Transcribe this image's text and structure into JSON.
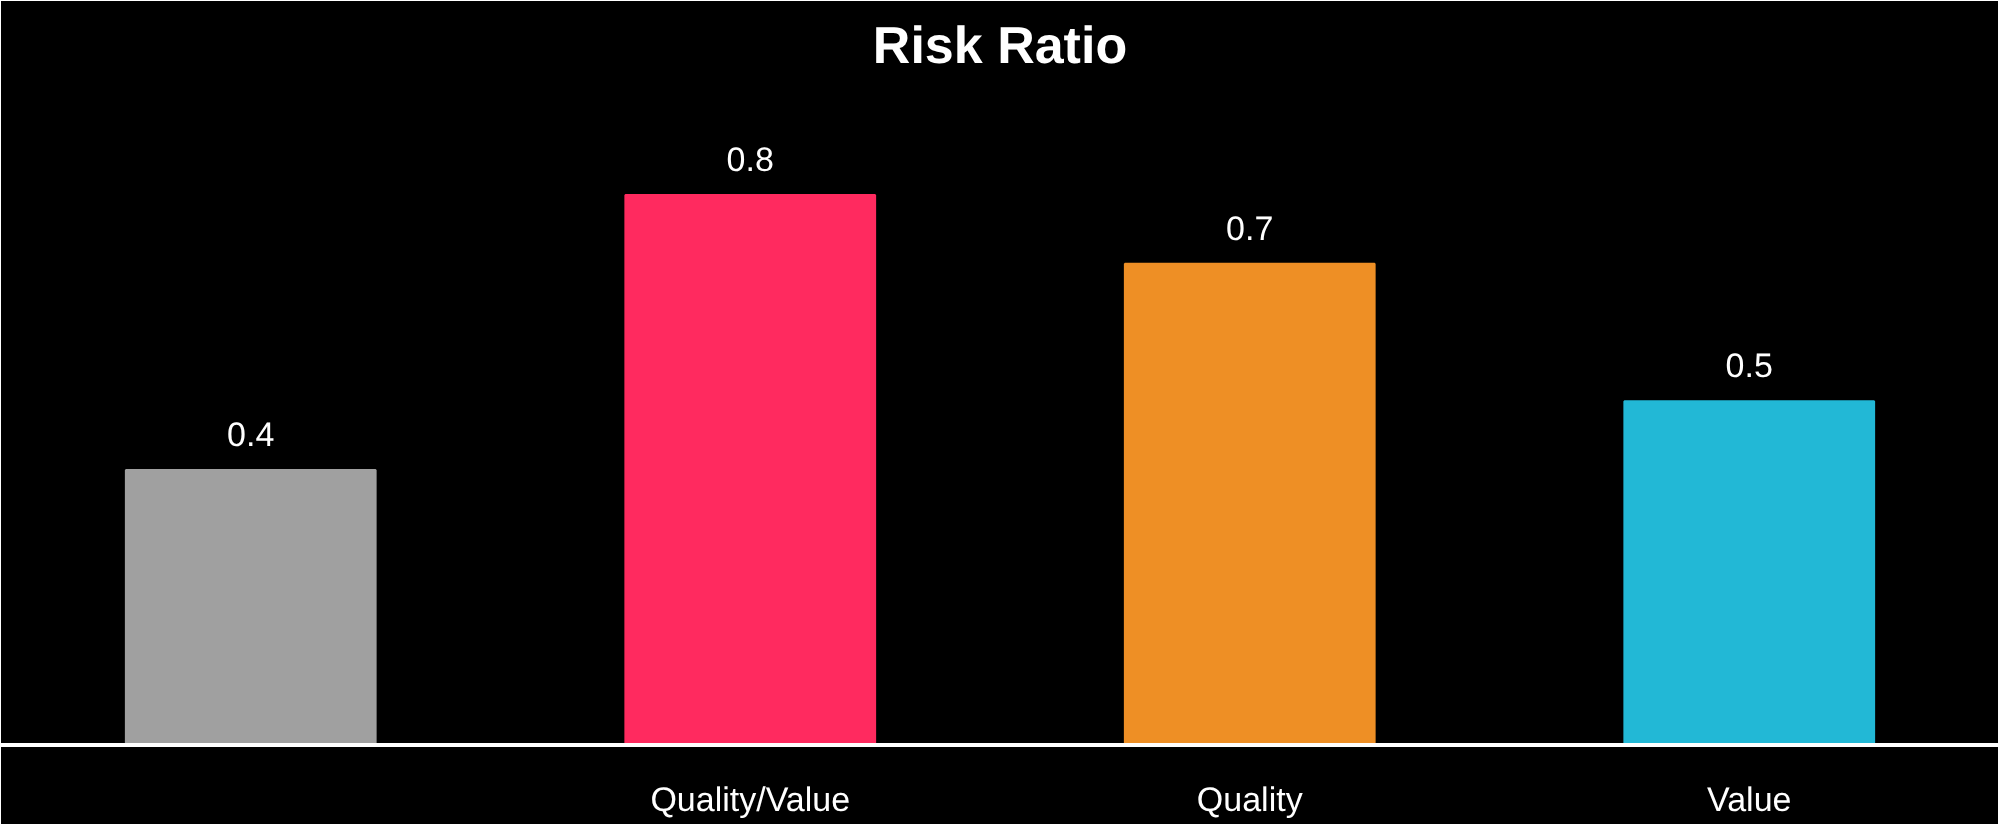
{
  "chart_data": {
    "type": "bar",
    "title": "Risk Ratio",
    "categories": [
      null,
      "Quality/Value",
      "Quality",
      "Value"
    ],
    "values": [
      0.4,
      0.8,
      0.7,
      0.5
    ],
    "colors": [
      "#a0a0a0",
      "#ff2a5f",
      "#ee8f25",
      "#22b8d6"
    ],
    "data_labels": true,
    "grid": false
  }
}
